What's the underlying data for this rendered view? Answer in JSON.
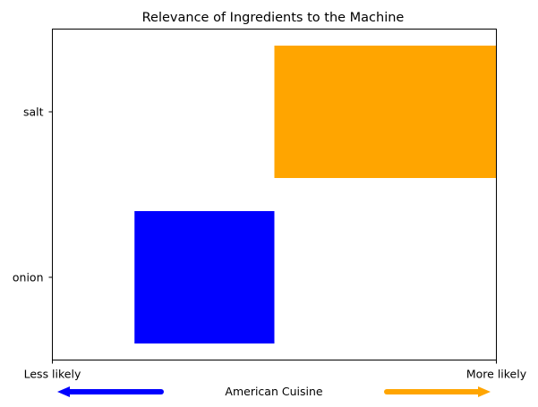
{
  "chart_data": {
    "type": "bar",
    "orientation": "horizontal",
    "title": "Relevance of Ingredients to the Machine",
    "categories": [
      "onion",
      "salt"
    ],
    "bars": [
      {
        "category": "onion",
        "start": -0.63,
        "end": 0.0,
        "color": "#0000ff"
      },
      {
        "category": "salt",
        "start": 0.0,
        "end": 1.0,
        "color": "#ffa500"
      }
    ],
    "xlim": [
      -1.0,
      1.0
    ],
    "x_tick_labels": [
      "Less likely",
      "More likely"
    ],
    "xlabel": "American Cuisine",
    "arrows": [
      {
        "direction": "left",
        "color": "#0000ff"
      },
      {
        "direction": "right",
        "color": "#ffa500"
      }
    ],
    "grid": false,
    "legend": "none"
  }
}
